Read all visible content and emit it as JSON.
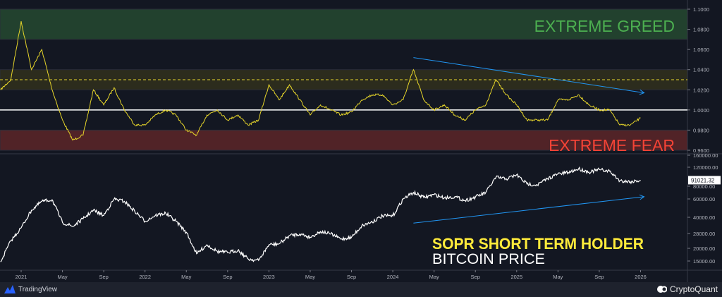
{
  "chart_data": [
    {
      "type": "line",
      "pane": "top",
      "series": [
        {
          "name": "SOPR SHORT TERM HOLDER",
          "color": "#e6d52a",
          "points": [
            [
              "2020-11",
              1.02
            ],
            [
              "2020-12",
              1.03
            ],
            [
              "2021-01",
              1.088
            ],
            [
              "2021-02",
              1.04
            ],
            [
              "2021-03",
              1.06
            ],
            [
              "2021-04",
              1.02
            ],
            [
              "2021-05",
              0.99
            ],
            [
              "2021-06",
              0.97
            ],
            [
              "2021-07",
              0.975
            ],
            [
              "2021-08",
              1.02
            ],
            [
              "2021-09",
              1.005
            ],
            [
              "2021-10",
              1.022
            ],
            [
              "2021-11",
              1.0
            ],
            [
              "2021-12",
              0.985
            ],
            [
              "2022-01",
              0.985
            ],
            [
              "2022-02",
              0.995
            ],
            [
              "2022-03",
              1.0
            ],
            [
              "2022-04",
              0.995
            ],
            [
              "2022-05",
              0.98
            ],
            [
              "2022-06",
              0.975
            ],
            [
              "2022-07",
              0.995
            ],
            [
              "2022-08",
              1.0
            ],
            [
              "2022-09",
              0.99
            ],
            [
              "2022-10",
              0.995
            ],
            [
              "2022-11",
              0.985
            ],
            [
              "2022-12",
              0.99
            ],
            [
              "2023-01",
              1.025
            ],
            [
              "2023-02",
              1.01
            ],
            [
              "2023-03",
              1.025
            ],
            [
              "2023-04",
              1.01
            ],
            [
              "2023-05",
              0.995
            ],
            [
              "2023-06",
              1.005
            ],
            [
              "2023-07",
              1.0
            ],
            [
              "2023-08",
              0.995
            ],
            [
              "2023-09",
              0.998
            ],
            [
              "2023-10",
              1.01
            ],
            [
              "2023-11",
              1.015
            ],
            [
              "2023-12",
              1.015
            ],
            [
              "2024-01",
              1.005
            ],
            [
              "2024-02",
              1.01
            ],
            [
              "2024-03",
              1.04
            ],
            [
              "2024-04",
              1.01
            ],
            [
              "2024-05",
              1.0
            ],
            [
              "2024-06",
              1.005
            ],
            [
              "2024-07",
              0.995
            ],
            [
              "2024-08",
              0.99
            ],
            [
              "2024-09",
              1.0
            ],
            [
              "2024-10",
              1.005
            ],
            [
              "2024-11",
              1.03
            ],
            [
              "2024-12",
              1.015
            ],
            [
              "2025-01",
              1.005
            ],
            [
              "2025-02",
              0.99
            ],
            [
              "2025-03",
              0.99
            ],
            [
              "2025-04",
              0.99
            ],
            [
              "2025-05",
              1.01
            ],
            [
              "2025-06",
              1.01
            ],
            [
              "2025-07",
              1.015
            ],
            [
              "2025-08",
              1.005
            ],
            [
              "2025-09",
              1.0
            ],
            [
              "2025-10",
              1.0
            ],
            [
              "2025-11",
              0.985
            ],
            [
              "2025-12",
              0.985
            ],
            [
              "2026-01",
              0.992
            ]
          ]
        }
      ],
      "ylim": [
        0.96,
        1.1
      ],
      "yticks": [
        "1.1000",
        "1.0800",
        "1.0600",
        "1.0400",
        "1.0200",
        "1.0000",
        "0.9800",
        "0.9600"
      ],
      "bands": [
        {
          "label": "EXTREME GREED",
          "from": 1.07,
          "to": 1.1,
          "color": "#4caf50"
        },
        {
          "from": 1.02,
          "to": 1.04,
          "color": "#c8b400"
        },
        {
          "label": "EXTREME FEAR",
          "from": 0.96,
          "to": 0.98,
          "color": "#f44336"
        }
      ],
      "reference_lines": [
        {
          "value": 1.0,
          "color": "#ffffff",
          "style": "solid"
        },
        {
          "value": 1.03,
          "color": "#e6d52a",
          "style": "dashed"
        }
      ],
      "trendline": {
        "from": [
          "2024-03",
          1.052
        ],
        "to": [
          "2026-01",
          1.017
        ],
        "color": "#2196f3",
        "arrow": true
      }
    },
    {
      "type": "line",
      "pane": "bottom",
      "yscale": "log",
      "series": [
        {
          "name": "BITCOIN PRICE",
          "color": "#ffffff",
          "points": [
            [
              "2020-11",
              16000
            ],
            [
              "2020-12",
              25000
            ],
            [
              "2021-01",
              33000
            ],
            [
              "2021-02",
              48000
            ],
            [
              "2021-03",
              58000
            ],
            [
              "2021-04",
              60000
            ],
            [
              "2021-05",
              37000
            ],
            [
              "2021-06",
              34000
            ],
            [
              "2021-07",
              40000
            ],
            [
              "2021-08",
              48000
            ],
            [
              "2021-09",
              43000
            ],
            [
              "2021-10",
              61000
            ],
            [
              "2021-11",
              58000
            ],
            [
              "2021-12",
              47000
            ],
            [
              "2022-01",
              38000
            ],
            [
              "2022-02",
              43000
            ],
            [
              "2022-03",
              45000
            ],
            [
              "2022-04",
              38000
            ],
            [
              "2022-05",
              30000
            ],
            [
              "2022-06",
              19000
            ],
            [
              "2022-07",
              23000
            ],
            [
              "2022-08",
              20000
            ],
            [
              "2022-09",
              19500
            ],
            [
              "2022-10",
              20500
            ],
            [
              "2022-11",
              17000
            ],
            [
              "2022-12",
              16500
            ],
            [
              "2023-01",
              23000
            ],
            [
              "2023-02",
              23500
            ],
            [
              "2023-03",
              28000
            ],
            [
              "2023-04",
              29000
            ],
            [
              "2023-05",
              27000
            ],
            [
              "2023-06",
              30500
            ],
            [
              "2023-07",
              29000
            ],
            [
              "2023-08",
              26000
            ],
            [
              "2023-09",
              27000
            ],
            [
              "2023-10",
              34500
            ],
            [
              "2023-11",
              37500
            ],
            [
              "2023-12",
              42500
            ],
            [
              "2024-01",
              42500
            ],
            [
              "2024-02",
              61000
            ],
            [
              "2024-03",
              70000
            ],
            [
              "2024-04",
              63000
            ],
            [
              "2024-05",
              67000
            ],
            [
              "2024-06",
              62500
            ],
            [
              "2024-07",
              64000
            ],
            [
              "2024-08",
              59000
            ],
            [
              "2024-09",
              63500
            ],
            [
              "2024-10",
              70000
            ],
            [
              "2024-11",
              97000
            ],
            [
              "2024-12",
              93500
            ],
            [
              "2025-01",
              102000
            ],
            [
              "2025-02",
              84000
            ],
            [
              "2025-03",
              82500
            ],
            [
              "2025-04",
              94000
            ],
            [
              "2025-05",
              104000
            ],
            [
              "2025-06",
              107000
            ],
            [
              "2025-07",
              116000
            ],
            [
              "2025-08",
              108000
            ],
            [
              "2025-09",
              114000
            ],
            [
              "2025-10",
              110000
            ],
            [
              "2025-11",
              90000
            ],
            [
              "2025-12",
              88000
            ],
            [
              "2026-01",
              91021.32
            ]
          ]
        }
      ],
      "yticks": [
        "160000.00",
        "120000.00",
        "80000.00",
        "60000.00",
        "40000.00",
        "28000.00",
        "20000.00",
        "15000.00"
      ],
      "last_value_label": "91021.32",
      "trendline": {
        "from": [
          "2024-03",
          36500
        ],
        "to": [
          "2026-01",
          64000
        ],
        "color": "#2196f3",
        "arrow": true
      }
    }
  ],
  "xaxis": {
    "ticks": [
      "2021",
      "May",
      "Sep",
      "2022",
      "May",
      "Sep",
      "2023",
      "May",
      "Sep",
      "2024",
      "May",
      "Sep",
      "2025",
      "May",
      "Sep",
      "2026"
    ]
  },
  "annotations": {
    "greed": "EXTREME GREED",
    "fear": "EXTREME FEAR",
    "sopr": "SOPR SHORT TERM HOLDER",
    "price": "BITCOIN PRICE"
  },
  "footer": {
    "tradingview": "TradingView",
    "cryptoquant": "CryptoQuant"
  }
}
